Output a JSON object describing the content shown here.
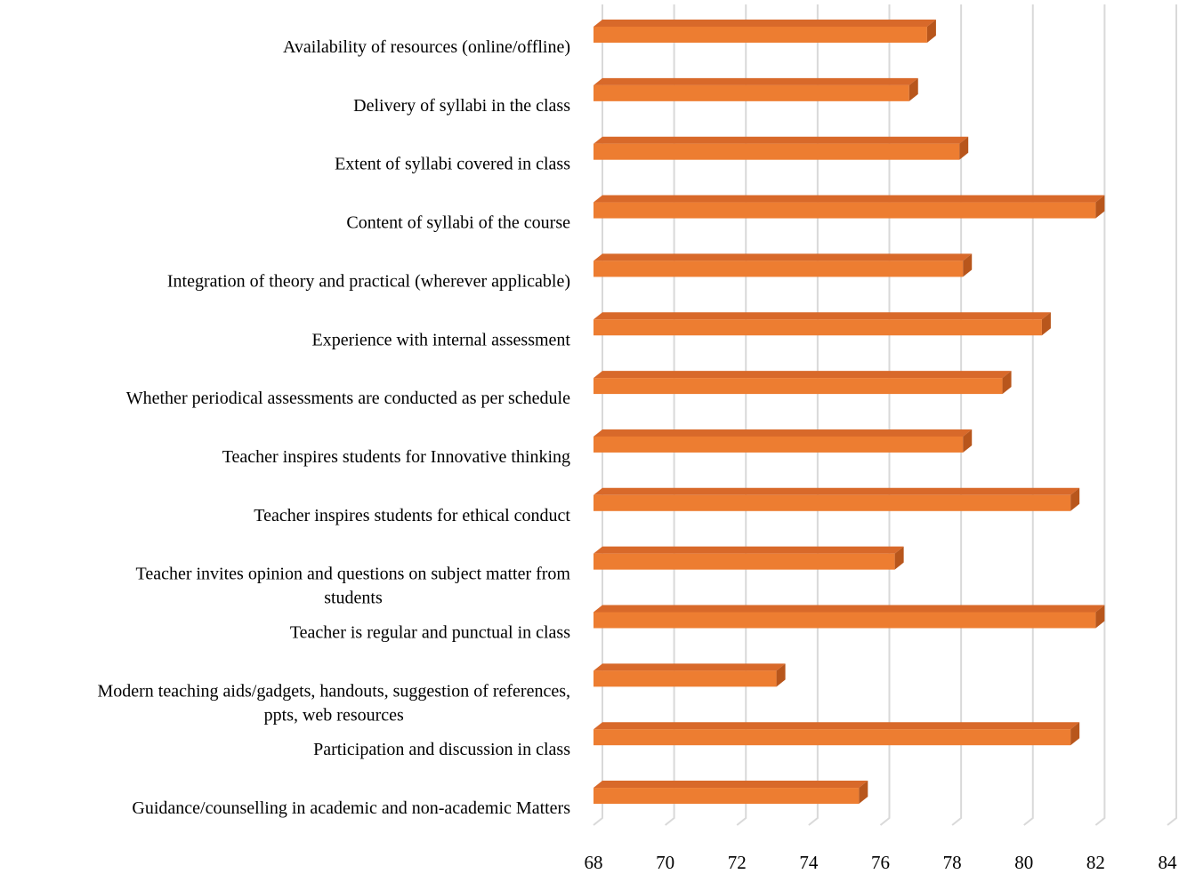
{
  "chart_data": {
    "type": "bar",
    "orientation": "horizontal",
    "style": "3d",
    "title": "",
    "xlabel": "",
    "ylabel": "",
    "categories": [
      [
        "Availability of resources (online/offline)"
      ],
      [
        "Delivery of syllabi in the class"
      ],
      [
        "Extent of syllabi covered in class"
      ],
      [
        "Content of syllabi of the course"
      ],
      [
        "Integration of theory and practical (wherever applicable)"
      ],
      [
        "Experience with internal assessment"
      ],
      [
        "Whether periodical assessments are conducted as per schedule"
      ],
      [
        "Teacher inspires students for Innovative thinking"
      ],
      [
        "Teacher inspires students for ethical conduct"
      ],
      [
        "Teacher invites opinion and questions on subject matter from",
        "students"
      ],
      [
        "Teacher is regular and punctual in class"
      ],
      [
        "Modern teaching aids/gadgets, handouts, suggestion of references,",
        "ppts, web resources"
      ],
      [
        "Participation and discussion in class"
      ],
      [
        "Guidance/counselling in academic and non-academic Matters"
      ]
    ],
    "values": [
      77.3,
      76.8,
      78.2,
      82.0,
      78.3,
      80.5,
      79.4,
      78.3,
      81.3,
      76.4,
      82.0,
      73.1,
      81.3,
      75.4
    ],
    "xlim": [
      68,
      84
    ],
    "xticks": [
      68,
      70,
      72,
      74,
      76,
      78,
      80,
      82,
      84
    ],
    "grid": true,
    "legend": "none",
    "colors": {
      "bar_front": "#ed7d31",
      "bar_top": "#d8692a",
      "bar_side": "#b8561c",
      "gridline": "#d9d9d9"
    }
  }
}
